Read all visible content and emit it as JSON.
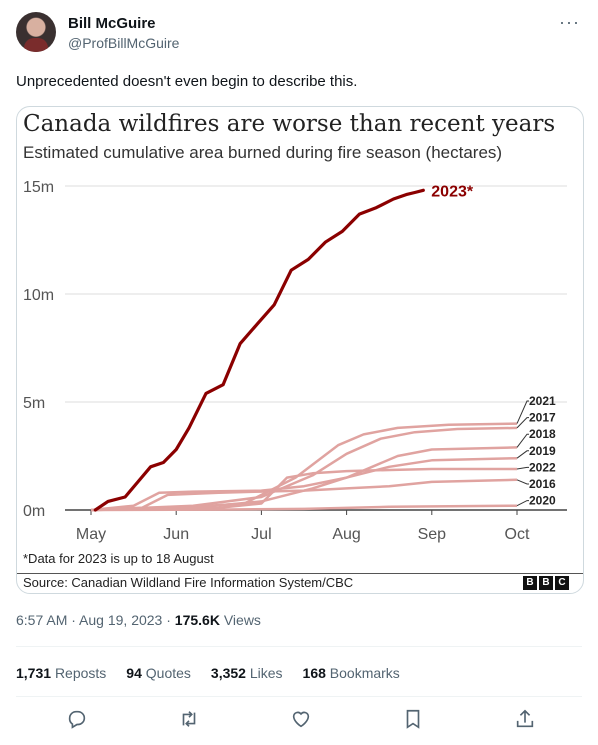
{
  "author": {
    "name": "Bill McGuire",
    "handle": "@ProfBillMcGuire"
  },
  "tweet": {
    "text": "Unprecedented doesn't even begin to describe this.",
    "time": "6:57 AM",
    "date": "Aug 19, 2023",
    "views_count": "175.6K",
    "views_label": "Views"
  },
  "stats": {
    "reposts_count": "1,731",
    "reposts_label": "Reposts",
    "quotes_count": "94",
    "quotes_label": "Quotes",
    "likes_count": "3,352",
    "likes_label": "Likes",
    "bookmarks_count": "168",
    "bookmarks_label": "Bookmarks"
  },
  "card": {
    "footnote": "*Data for 2023 is up to 18 August",
    "source": "Source: Canadian Wildland Fire Information System/CBC",
    "logo": [
      "B",
      "B",
      "C"
    ]
  },
  "icons": {
    "reply": "reply-icon",
    "repost": "repost-icon",
    "like": "heart-icon",
    "bookmark": "bookmark-icon",
    "share": "share-icon",
    "more": "more-icon"
  },
  "chart_data": {
    "type": "line",
    "title": "Canada wildfires are worse than recent years",
    "subtitle": "Estimated cumulative area burned during fire season (hectares)",
    "xlabel": "",
    "ylabel": "",
    "x_ticks": [
      "May",
      "Jun",
      "Jul",
      "Aug",
      "Sep",
      "Oct"
    ],
    "y_ticks": [
      {
        "value": 0,
        "label": "0m"
      },
      {
        "value": 5,
        "label": "5m"
      },
      {
        "value": 10,
        "label": "10m"
      },
      {
        "value": 15,
        "label": "15m"
      }
    ],
    "x_range": [
      0,
      5
    ],
    "ylim": [
      0,
      15
    ],
    "y_unit": "million hectares",
    "grid": true,
    "highlight_color": "#8b0000",
    "series_color": "#e0a3a0",
    "series": [
      {
        "name": "2023*",
        "highlight": true,
        "x": [
          0.05,
          0.2,
          0.4,
          0.55,
          0.7,
          0.85,
          1.0,
          1.15,
          1.35,
          1.55,
          1.75,
          1.95,
          2.15,
          2.35,
          2.55,
          2.75,
          2.95,
          3.15,
          3.35,
          3.55,
          3.7,
          3.8,
          3.9
        ],
        "y": [
          0.0,
          0.4,
          0.6,
          1.3,
          2.0,
          2.2,
          2.8,
          3.8,
          5.4,
          5.8,
          7.7,
          8.6,
          9.5,
          11.1,
          11.6,
          12.4,
          12.9,
          13.7,
          14.0,
          14.4,
          14.6,
          14.7,
          14.8
        ]
      },
      {
        "name": "2021",
        "x": [
          0,
          1,
          1.8,
          2.4,
          2.9,
          3.2,
          3.6,
          4.2,
          5.0
        ],
        "y": [
          0,
          0.1,
          0.3,
          1.5,
          3.0,
          3.5,
          3.8,
          3.95,
          4.0
        ]
      },
      {
        "name": "2017",
        "x": [
          0,
          1.2,
          2.0,
          2.6,
          3.0,
          3.4,
          3.8,
          4.3,
          5.0
        ],
        "y": [
          0,
          0.2,
          0.6,
          1.6,
          2.6,
          3.3,
          3.6,
          3.75,
          3.8
        ]
      },
      {
        "name": "2018",
        "x": [
          0,
          1.2,
          2.0,
          2.6,
          3.0,
          3.3,
          3.6,
          4.0,
          5.0
        ],
        "y": [
          0,
          0.1,
          0.4,
          1.0,
          1.5,
          2.0,
          2.5,
          2.8,
          2.9
        ]
      },
      {
        "name": "2019",
        "x": [
          0,
          0.5,
          0.8,
          1.2,
          2.0,
          2.5,
          3.0,
          3.5,
          4.0,
          5.0
        ],
        "y": [
          0,
          0.2,
          0.8,
          0.85,
          0.9,
          1.1,
          1.5,
          2.0,
          2.3,
          2.4
        ]
      },
      {
        "name": "2022",
        "x": [
          0,
          1.5,
          2.0,
          2.3,
          2.6,
          3.0,
          3.5,
          4.0,
          5.0
        ],
        "y": [
          0,
          0.1,
          0.3,
          1.5,
          1.7,
          1.8,
          1.85,
          1.9,
          1.9
        ]
      },
      {
        "name": "2016",
        "x": [
          0,
          0.6,
          0.9,
          1.5,
          2.0,
          2.5,
          3.0,
          3.5,
          4.0,
          5.0
        ],
        "y": [
          0,
          0.1,
          0.7,
          0.8,
          0.85,
          0.9,
          1.0,
          1.1,
          1.3,
          1.4
        ]
      },
      {
        "name": "2020",
        "x": [
          0,
          1.5,
          2.5,
          3.5,
          5.0
        ],
        "y": [
          0,
          0.02,
          0.05,
          0.15,
          0.2
        ]
      }
    ]
  }
}
